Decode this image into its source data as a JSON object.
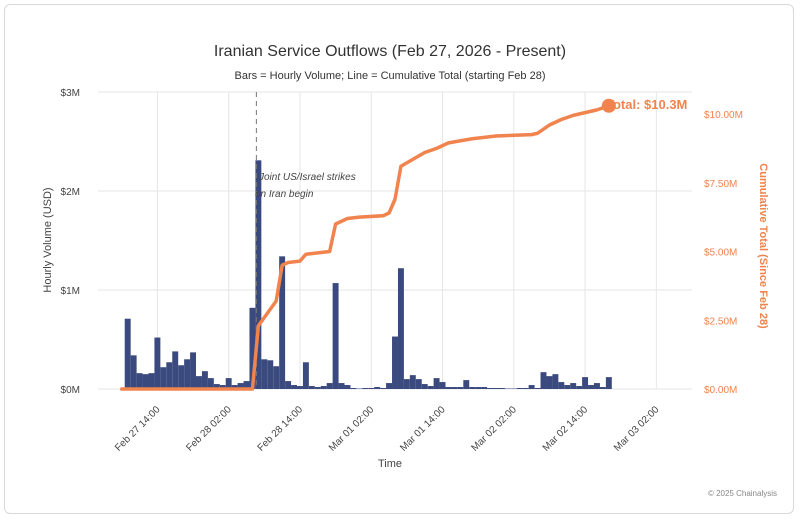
{
  "chart_data": {
    "type": "bar+line",
    "title": "Iranian Service Outflows (Feb 27, 2026 - Present)",
    "subtitle": "Bars = Hourly Volume; Line = Cumulative Total (starting Feb 28)",
    "xlabel": "Time",
    "ylabel_left": "Hourly Volume (USD)",
    "ylabel_right": "Cumulative Total (Since Feb 28)",
    "x_range": [
      "2026-02-27 04:00",
      "2026-03-03 08:00"
    ],
    "x_ticks": [
      {
        "label": "Feb 27 14:00",
        "time": "2026-02-27 14:00"
      },
      {
        "label": "Feb 28 02:00",
        "time": "2026-02-28 02:00"
      },
      {
        "label": "Feb 28 14:00",
        "time": "2026-02-28 14:00"
      },
      {
        "label": "Mar 01 02:00",
        "time": "2026-03-01 02:00"
      },
      {
        "label": "Mar 01 14:00",
        "time": "2026-03-01 14:00"
      },
      {
        "label": "Mar 02 02:00",
        "time": "2026-03-02 02:00"
      },
      {
        "label": "Mar 02 14:00",
        "time": "2026-03-02 14:00"
      },
      {
        "label": "Mar 03 02:00",
        "time": "2026-03-03 02:00"
      }
    ],
    "y_left_range": [
      0,
      3000000
    ],
    "y_left_ticks": [
      {
        "label": "$0M",
        "value": 0
      },
      {
        "label": "$1M",
        "value": 1000000
      },
      {
        "label": "$2M",
        "value": 2000000
      },
      {
        "label": "$3M",
        "value": 3000000
      }
    ],
    "y_right_range": [
      0,
      10800000
    ],
    "y_right_ticks": [
      {
        "label": "$0.00M",
        "value": 0
      },
      {
        "label": "$2.50M",
        "value": 2500000
      },
      {
        "label": "$5.00M",
        "value": 5000000
      },
      {
        "label": "$7.50M",
        "value": 7500000
      },
      {
        "label": "$10.00M",
        "value": 10000000
      }
    ],
    "bars": {
      "color": "#3b4a7e",
      "points": [
        {
          "time": "2026-02-27 09:00",
          "value": 710000
        },
        {
          "time": "2026-02-27 10:00",
          "value": 340000
        },
        {
          "time": "2026-02-27 11:00",
          "value": 160000
        },
        {
          "time": "2026-02-27 12:00",
          "value": 150000
        },
        {
          "time": "2026-02-27 13:00",
          "value": 160000
        },
        {
          "time": "2026-02-27 14:00",
          "value": 520000
        },
        {
          "time": "2026-02-27 15:00",
          "value": 220000
        },
        {
          "time": "2026-02-27 16:00",
          "value": 270000
        },
        {
          "time": "2026-02-27 17:00",
          "value": 380000
        },
        {
          "time": "2026-02-27 18:00",
          "value": 240000
        },
        {
          "time": "2026-02-27 19:00",
          "value": 300000
        },
        {
          "time": "2026-02-27 20:00",
          "value": 370000
        },
        {
          "time": "2026-02-27 21:00",
          "value": 130000
        },
        {
          "time": "2026-02-27 22:00",
          "value": 180000
        },
        {
          "time": "2026-02-27 23:00",
          "value": 110000
        },
        {
          "time": "2026-02-28 00:00",
          "value": 50000
        },
        {
          "time": "2026-02-28 01:00",
          "value": 40000
        },
        {
          "time": "2026-02-28 02:00",
          "value": 110000
        },
        {
          "time": "2026-02-28 03:00",
          "value": 40000
        },
        {
          "time": "2026-02-28 04:00",
          "value": 60000
        },
        {
          "time": "2026-02-28 05:00",
          "value": 80000
        },
        {
          "time": "2026-02-28 06:00",
          "value": 820000
        },
        {
          "time": "2026-02-28 07:00",
          "value": 2310000
        },
        {
          "time": "2026-02-28 08:00",
          "value": 300000
        },
        {
          "time": "2026-02-28 09:00",
          "value": 290000
        },
        {
          "time": "2026-02-28 10:00",
          "value": 230000
        },
        {
          "time": "2026-02-28 11:00",
          "value": 1340000
        },
        {
          "time": "2026-02-28 12:00",
          "value": 80000
        },
        {
          "time": "2026-02-28 13:00",
          "value": 40000
        },
        {
          "time": "2026-02-28 14:00",
          "value": 30000
        },
        {
          "time": "2026-02-28 15:00",
          "value": 270000
        },
        {
          "time": "2026-02-28 16:00",
          "value": 30000
        },
        {
          "time": "2026-02-28 17:00",
          "value": 20000
        },
        {
          "time": "2026-02-28 18:00",
          "value": 30000
        },
        {
          "time": "2026-02-28 19:00",
          "value": 60000
        },
        {
          "time": "2026-02-28 20:00",
          "value": 1070000
        },
        {
          "time": "2026-02-28 21:00",
          "value": 60000
        },
        {
          "time": "2026-02-28 22:00",
          "value": 40000
        },
        {
          "time": "2026-02-28 23:00",
          "value": 10000
        },
        {
          "time": "2026-03-01 00:00",
          "value": 5000
        },
        {
          "time": "2026-03-01 01:00",
          "value": 10000
        },
        {
          "time": "2026-03-01 02:00",
          "value": 10000
        },
        {
          "time": "2026-03-01 03:00",
          "value": 20000
        },
        {
          "time": "2026-03-01 04:00",
          "value": 10000
        },
        {
          "time": "2026-03-01 05:00",
          "value": 60000
        },
        {
          "time": "2026-03-01 06:00",
          "value": 530000
        },
        {
          "time": "2026-03-01 07:00",
          "value": 1220000
        },
        {
          "time": "2026-03-01 08:00",
          "value": 100000
        },
        {
          "time": "2026-03-01 09:00",
          "value": 140000
        },
        {
          "time": "2026-03-01 10:00",
          "value": 100000
        },
        {
          "time": "2026-03-01 11:00",
          "value": 50000
        },
        {
          "time": "2026-03-01 12:00",
          "value": 30000
        },
        {
          "time": "2026-03-01 13:00",
          "value": 110000
        },
        {
          "time": "2026-03-01 14:00",
          "value": 70000
        },
        {
          "time": "2026-03-01 15:00",
          "value": 20000
        },
        {
          "time": "2026-03-01 16:00",
          "value": 20000
        },
        {
          "time": "2026-03-01 17:00",
          "value": 20000
        },
        {
          "time": "2026-03-01 18:00",
          "value": 90000
        },
        {
          "time": "2026-03-01 19:00",
          "value": 20000
        },
        {
          "time": "2026-03-01 20:00",
          "value": 20000
        },
        {
          "time": "2026-03-01 21:00",
          "value": 20000
        },
        {
          "time": "2026-03-01 22:00",
          "value": 10000
        },
        {
          "time": "2026-03-01 23:00",
          "value": 10000
        },
        {
          "time": "2026-03-02 00:00",
          "value": 10000
        },
        {
          "time": "2026-03-02 01:00",
          "value": 5000
        },
        {
          "time": "2026-03-02 02:00",
          "value": 5000
        },
        {
          "time": "2026-03-02 03:00",
          "value": 10000
        },
        {
          "time": "2026-03-02 04:00",
          "value": 10000
        },
        {
          "time": "2026-03-02 05:00",
          "value": 40000
        },
        {
          "time": "2026-03-02 06:00",
          "value": 10000
        },
        {
          "time": "2026-03-02 07:00",
          "value": 170000
        },
        {
          "time": "2026-03-02 08:00",
          "value": 130000
        },
        {
          "time": "2026-03-02 09:00",
          "value": 150000
        },
        {
          "time": "2026-03-02 10:00",
          "value": 70000
        },
        {
          "time": "2026-03-02 11:00",
          "value": 40000
        },
        {
          "time": "2026-03-02 12:00",
          "value": 60000
        },
        {
          "time": "2026-03-02 13:00",
          "value": 30000
        },
        {
          "time": "2026-03-02 14:00",
          "value": 120000
        },
        {
          "time": "2026-03-02 15:00",
          "value": 40000
        },
        {
          "time": "2026-03-02 16:00",
          "value": 60000
        },
        {
          "time": "2026-03-02 17:00",
          "value": 20000
        },
        {
          "time": "2026-03-02 18:00",
          "value": 120000
        }
      ]
    },
    "line": {
      "color": "#f0834e",
      "points": [
        {
          "time": "2026-02-27 08:00",
          "value": 0
        },
        {
          "time": "2026-02-28 06:00",
          "value": 0
        },
        {
          "time": "2026-02-28 07:00",
          "value": 2300000
        },
        {
          "time": "2026-02-28 08:00",
          "value": 2600000
        },
        {
          "time": "2026-02-28 09:00",
          "value": 2900000
        },
        {
          "time": "2026-02-28 10:00",
          "value": 3200000
        },
        {
          "time": "2026-02-28 11:00",
          "value": 4500000
        },
        {
          "time": "2026-02-28 12:00",
          "value": 4600000
        },
        {
          "time": "2026-02-28 14:00",
          "value": 4650000
        },
        {
          "time": "2026-02-28 15:00",
          "value": 4900000
        },
        {
          "time": "2026-02-28 19:00",
          "value": 5000000
        },
        {
          "time": "2026-02-28 20:00",
          "value": 6000000
        },
        {
          "time": "2026-02-28 22:00",
          "value": 6200000
        },
        {
          "time": "2026-03-01 00:00",
          "value": 6250000
        },
        {
          "time": "2026-03-01 04:00",
          "value": 6300000
        },
        {
          "time": "2026-03-01 05:00",
          "value": 6400000
        },
        {
          "time": "2026-03-01 06:00",
          "value": 6900000
        },
        {
          "time": "2026-03-01 07:00",
          "value": 8100000
        },
        {
          "time": "2026-03-01 09:00",
          "value": 8350000
        },
        {
          "time": "2026-03-01 11:00",
          "value": 8600000
        },
        {
          "time": "2026-03-01 13:00",
          "value": 8750000
        },
        {
          "time": "2026-03-01 15:00",
          "value": 8950000
        },
        {
          "time": "2026-03-01 19:00",
          "value": 9100000
        },
        {
          "time": "2026-03-01 23:00",
          "value": 9200000
        },
        {
          "time": "2026-03-02 05:00",
          "value": 9250000
        },
        {
          "time": "2026-03-02 06:00",
          "value": 9300000
        },
        {
          "time": "2026-03-02 08:00",
          "value": 9600000
        },
        {
          "time": "2026-03-02 10:00",
          "value": 9800000
        },
        {
          "time": "2026-03-02 12:00",
          "value": 9950000
        },
        {
          "time": "2026-03-02 14:00",
          "value": 10050000
        },
        {
          "time": "2026-03-02 16:00",
          "value": 10150000
        },
        {
          "time": "2026-03-02 18:00",
          "value": 10300000
        }
      ]
    },
    "event": {
      "time": "2026-02-28 07:00",
      "label_line1": "Joint US/Israel strikes",
      "label_line2": "on Iran begin"
    },
    "total_label": "Total: $10.3M",
    "grid": true
  },
  "footer": {
    "credit": "© 2025 Chainalysis"
  }
}
